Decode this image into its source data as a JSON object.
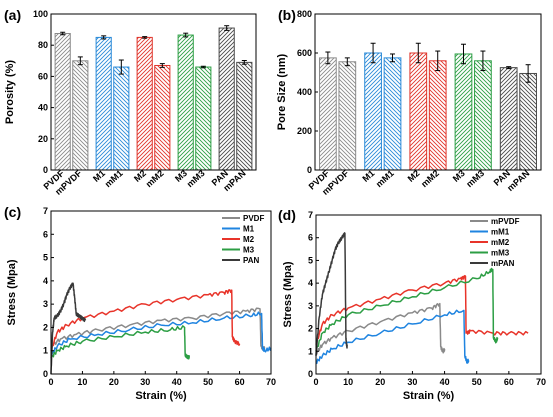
{
  "figure": {
    "panel_labels": [
      "(a)",
      "(b)",
      "(c)",
      "(d)"
    ]
  },
  "chart_data": [
    {
      "type": "bar",
      "panel": "(a)",
      "ylabel": "Porosity (%)",
      "xlabel": "",
      "ylim": [
        0,
        100
      ],
      "yticks": [
        0,
        20,
        40,
        60,
        80,
        100
      ],
      "grid": false,
      "categories": [
        "PVDF",
        "mPVDF",
        "M1",
        "mM1",
        "M2",
        "mM2",
        "M3",
        "mM3",
        "PAN",
        "mPAN"
      ],
      "values": [
        87.5,
        70,
        85,
        66,
        85,
        67,
        86.5,
        66,
        91,
        69
      ],
      "errors": [
        0.8,
        2.5,
        1.0,
        4.5,
        0.5,
        1.2,
        1.2,
        0.5,
        1.5,
        1.2
      ],
      "colors": [
        "#8a8a8a",
        "#8a8a8a",
        "#2a8ad8",
        "#2a8ad8",
        "#e0342a",
        "#e0342a",
        "#2c9e44",
        "#2c9e44",
        "#4a4a4a",
        "#4a4a4a"
      ],
      "hatch": [
        "////",
        "\\\\\\\\",
        "////",
        "\\\\\\\\",
        "////",
        "\\\\\\\\",
        "////",
        "\\\\\\\\",
        "////",
        "\\\\\\\\"
      ]
    },
    {
      "type": "bar",
      "panel": "(b)",
      "ylabel": "Pore Size (nm)",
      "xlabel": "",
      "ylim": [
        0,
        800
      ],
      "yticks": [
        0,
        200,
        400,
        600,
        800
      ],
      "grid": false,
      "categories": [
        "PVDF",
        "mPVDF",
        "M1",
        "mM1",
        "M2",
        "mM2",
        "M3",
        "mM3",
        "PAN",
        "mPAN"
      ],
      "values": [
        575,
        555,
        600,
        575,
        600,
        560,
        595,
        560,
        525,
        495
      ],
      "errors": [
        30,
        20,
        50,
        20,
        50,
        50,
        50,
        50,
        5,
        45
      ],
      "colors": [
        "#8a8a8a",
        "#8a8a8a",
        "#2a8ad8",
        "#2a8ad8",
        "#e0342a",
        "#e0342a",
        "#2c9e44",
        "#2c9e44",
        "#4a4a4a",
        "#4a4a4a"
      ],
      "hatch": [
        "////",
        "\\\\\\\\",
        "////",
        "\\\\\\\\",
        "////",
        "\\\\\\\\",
        "////",
        "\\\\\\\\",
        "////",
        "\\\\\\\\"
      ]
    },
    {
      "type": "line",
      "panel": "(c)",
      "xlabel": "Strain (%)",
      "ylabel": "Stress (Mpa)",
      "xlim": [
        0,
        70
      ],
      "ylim": [
        0,
        7
      ],
      "xticks": [
        0,
        10,
        20,
        30,
        40,
        50,
        60,
        70
      ],
      "yticks": [
        0,
        1,
        2,
        3,
        4,
        5,
        6,
        7
      ],
      "grid": false,
      "legend": "top-right",
      "series": [
        {
          "name": "PVDF",
          "color": "#8a8a8a",
          "x": [
            0,
            3,
            8,
            15,
            25,
            35,
            45,
            55,
            62,
            66.5,
            66.8,
            67.5,
            68
          ],
          "y": [
            1.2,
            1.5,
            1.7,
            1.9,
            2.1,
            2.3,
            2.4,
            2.6,
            2.7,
            2.8,
            1.2,
            1.1,
            1.1
          ]
        },
        {
          "name": "M1",
          "color": "#1f84e0",
          "x": [
            0,
            2,
            6,
            15,
            25,
            35,
            45,
            55,
            63,
            67,
            67.3,
            68,
            70
          ],
          "y": [
            0.8,
            1.2,
            1.5,
            1.7,
            1.9,
            2.1,
            2.2,
            2.4,
            2.5,
            2.6,
            1.1,
            1.0,
            1.1
          ]
        },
        {
          "name": "M2",
          "color": "#e8342a",
          "x": [
            0,
            2,
            5,
            10,
            20,
            30,
            40,
            50,
            55,
            57.5,
            57.7,
            58.5,
            60
          ],
          "y": [
            1.0,
            1.8,
            2.1,
            2.4,
            2.7,
            3.0,
            3.2,
            3.4,
            3.5,
            3.6,
            1.6,
            1.4,
            1.3
          ]
        },
        {
          "name": "M3",
          "color": "#2c9e44",
          "x": [
            0,
            2,
            5,
            10,
            20,
            30,
            38,
            42.5,
            42.7,
            43.5,
            44
          ],
          "y": [
            0.7,
            1.0,
            1.2,
            1.4,
            1.6,
            1.8,
            1.9,
            2.0,
            0.8,
            0.7,
            0.7
          ]
        },
        {
          "name": "PAN",
          "color": "#3a3a3a",
          "x": [
            0,
            0.5,
            1,
            2,
            3,
            4,
            5,
            6,
            7,
            7.5,
            8,
            9,
            10,
            11
          ],
          "y": [
            0,
            1.8,
            2.4,
            2.5,
            2.7,
            3.0,
            3.4,
            3.7,
            3.9,
            3.3,
            2.6,
            2.5,
            2.4,
            2.3
          ]
        }
      ]
    },
    {
      "type": "line",
      "panel": "(d)",
      "xlabel": "Strain (%)",
      "ylabel": "Stress (Mpa)",
      "xlim": [
        0,
        70
      ],
      "ylim": [
        0,
        7
      ],
      "xticks": [
        0,
        10,
        20,
        30,
        40,
        50,
        60,
        70
      ],
      "yticks": [
        0,
        1,
        2,
        3,
        4,
        5,
        6,
        7
      ],
      "grid": false,
      "legend": "top-right",
      "series": [
        {
          "name": "mPVDF",
          "color": "#8a8a8a",
          "x": [
            0,
            2,
            5,
            10,
            20,
            30,
            36,
            38.5,
            38.8,
            39.5,
            40
          ],
          "y": [
            0.9,
            1.3,
            1.6,
            1.9,
            2.3,
            2.7,
            2.9,
            3.1,
            1.2,
            1.0,
            1.1
          ]
        },
        {
          "name": "mM1",
          "color": "#1f84e0",
          "x": [
            0,
            2,
            5,
            10,
            20,
            30,
            40,
            46,
            46.3,
            47,
            47.5
          ],
          "y": [
            0.5,
            0.8,
            1.1,
            1.4,
            1.8,
            2.2,
            2.6,
            2.8,
            0.8,
            0.5,
            0.6
          ]
        },
        {
          "name": "mM2",
          "color": "#e8342a",
          "x": [
            0,
            2,
            5,
            10,
            20,
            30,
            40,
            45,
            46.5,
            46.7,
            48,
            55,
            60,
            66
          ],
          "y": [
            1.3,
            2.2,
            2.6,
            2.9,
            3.3,
            3.7,
            4.0,
            4.2,
            4.3,
            1.8,
            1.9,
            1.8,
            1.8,
            1.8
          ]
        },
        {
          "name": "mM3",
          "color": "#2c9e44",
          "x": [
            0,
            2,
            5,
            10,
            20,
            30,
            40,
            50,
            54,
            55,
            55.2,
            56,
            56.5
          ],
          "y": [
            1.0,
            1.8,
            2.2,
            2.6,
            3.0,
            3.4,
            3.8,
            4.2,
            4.5,
            4.6,
            1.6,
            1.4,
            1.6
          ]
        },
        {
          "name": "mPAN",
          "color": "#3a3a3a",
          "x": [
            0,
            1,
            2,
            3,
            4,
            5,
            6,
            7,
            8,
            9,
            9.3,
            9.5,
            9.7
          ],
          "y": [
            0.8,
            2.5,
            3.5,
            4.0,
            4.5,
            5.0,
            5.5,
            5.8,
            6.0,
            6.2,
            1.6,
            1.3,
            1.2
          ]
        }
      ]
    }
  ]
}
